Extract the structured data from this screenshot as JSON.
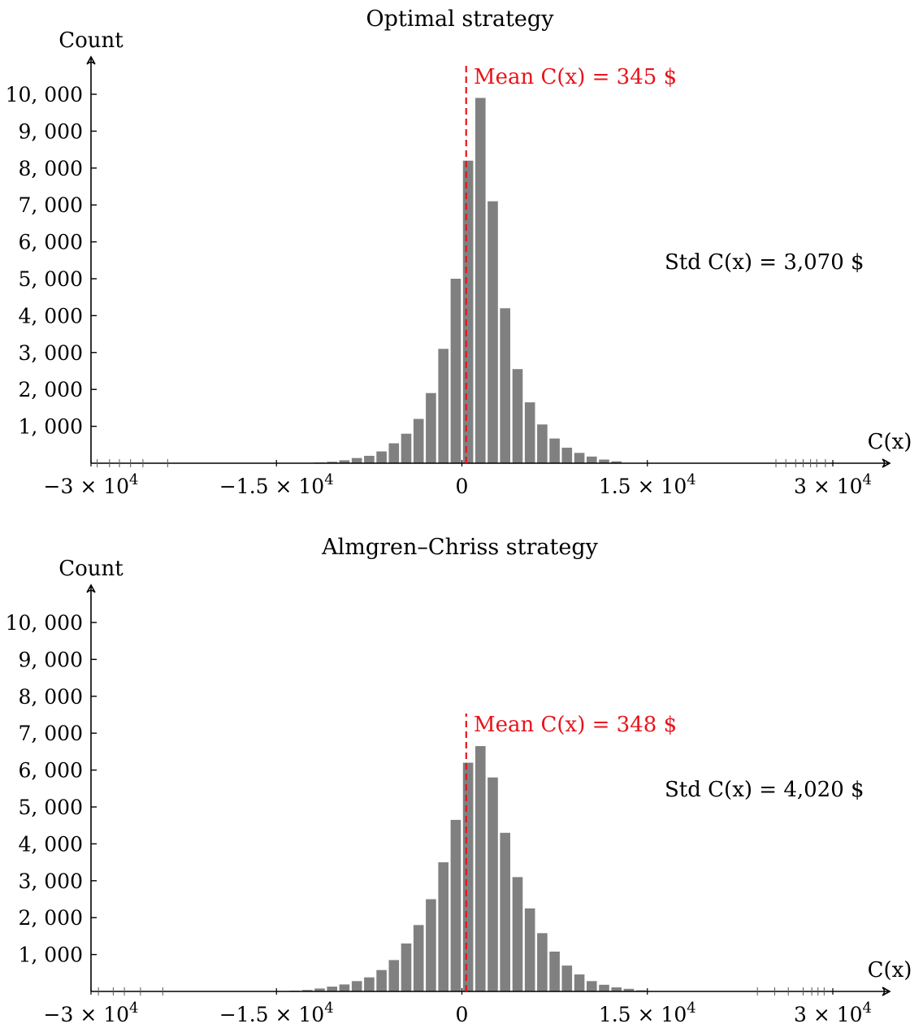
{
  "colors": {
    "bar": "#808080",
    "mean_line": "#e8141b",
    "axis": "#000000"
  },
  "chart_data": [
    {
      "type": "bar",
      "title": "Optimal strategy",
      "xlabel": "C(x)",
      "ylabel": "Count",
      "xlim": [
        -30000,
        34000
      ],
      "ylim": [
        0,
        10800
      ],
      "bin_width": 1000,
      "y_ticks": [
        1000,
        2000,
        3000,
        4000,
        5000,
        6000,
        7000,
        8000,
        9000,
        10000
      ],
      "y_tick_labels": [
        "1, 000",
        "2, 000",
        "3, 000",
        "4, 000",
        "5, 000",
        "6, 000",
        "7, 000",
        "8, 000",
        "9, 000",
        "10, 000"
      ],
      "x_ticks": [
        -30000,
        -15000,
        0,
        15000,
        30000
      ],
      "x_tick_labels": [
        "−3 × 10",
        "−1.5 × 10",
        "0",
        "1.5 × 10",
        "3 × 10"
      ],
      "x_tick_exponents": [
        "4",
        "4",
        "",
        "4",
        "4"
      ],
      "outlier_ticks": [
        -29500,
        -28500,
        -27700,
        -26800,
        -25800,
        -23800,
        25400,
        26200,
        27000,
        27600,
        28200,
        28700,
        29400
      ],
      "bins_left": [
        -12000,
        -11000,
        -10000,
        -9000,
        -8000,
        -7000,
        -6000,
        -5000,
        -4000,
        -3000,
        -2000,
        -1000,
        0,
        1000,
        2000,
        3000,
        4000,
        5000,
        6000,
        7000,
        8000,
        9000,
        10000,
        11000,
        12000
      ],
      "values": [
        20,
        40,
        80,
        140,
        200,
        320,
        540,
        800,
        1200,
        1900,
        3100,
        5000,
        8200,
        9900,
        7100,
        4200,
        2550,
        1650,
        1050,
        670,
        420,
        280,
        180,
        100,
        50
      ],
      "mean": 345,
      "mean_label": "Mean C(x) = 345 $",
      "std_label": "Std C(x) = 3,070 $"
    },
    {
      "type": "bar",
      "title": "Almgren–Chriss strategy",
      "xlabel": "C(x)",
      "ylabel": "Count",
      "xlim": [
        -30000,
        34000
      ],
      "ylim": [
        0,
        10800
      ],
      "bin_width": 1000,
      "y_ticks": [
        1000,
        2000,
        3000,
        4000,
        5000,
        6000,
        7000,
        8000,
        9000,
        10000
      ],
      "y_tick_labels": [
        "1, 000",
        "2, 000",
        "3, 000",
        "4, 000",
        "5, 000",
        "6, 000",
        "7, 000",
        "8, 000",
        "9, 000",
        "10, 000"
      ],
      "x_ticks": [
        -30000,
        -15000,
        0,
        15000,
        30000
      ],
      "x_tick_labels": [
        "−3 × 10",
        "−1.5 × 10",
        "0",
        "1.5 × 10",
        "3 × 10"
      ],
      "x_tick_exponents": [
        "4",
        "4",
        "",
        "4",
        "4"
      ],
      "outlier_ticks": [
        -29400,
        -28200,
        -27300,
        -26000,
        -24200,
        23900,
        25300,
        26400,
        27600,
        28300,
        28800,
        29300
      ],
      "bins_left": [
        -14000,
        -13000,
        -12000,
        -11000,
        -10000,
        -9000,
        -8000,
        -7000,
        -6000,
        -5000,
        -4000,
        -3000,
        -2000,
        -1000,
        0,
        1000,
        2000,
        3000,
        4000,
        5000,
        6000,
        7000,
        8000,
        9000,
        10000,
        11000,
        12000,
        13000,
        14000
      ],
      "values": [
        20,
        40,
        80,
        130,
        190,
        280,
        380,
        580,
        850,
        1300,
        1800,
        2500,
        3500,
        4650,
        6200,
        6650,
        5800,
        4300,
        3100,
        2250,
        1580,
        1080,
        700,
        460,
        280,
        180,
        110,
        70,
        30
      ],
      "mean": 348,
      "mean_label": "Mean C(x) = 348 $",
      "std_label": "Std C(x) = 4,020 $"
    }
  ]
}
